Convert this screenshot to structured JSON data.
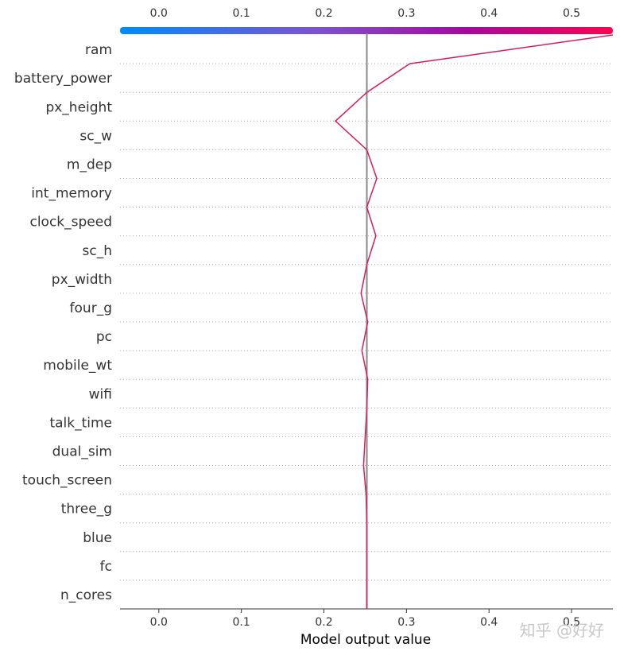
{
  "chart_data": {
    "type": "line",
    "subtype": "shap-decision-plot",
    "xlabel": "Model output value",
    "xlim": [
      -0.047,
      0.55
    ],
    "x_ticks": [
      0.0,
      0.1,
      0.2,
      0.3,
      0.4,
      0.5
    ],
    "x_tick_labels": [
      "0.0",
      "0.1",
      "0.2",
      "0.3",
      "0.4",
      "0.5"
    ],
    "base_value": 0.252,
    "features": [
      "ram",
      "battery_power",
      "px_height",
      "sc_w",
      "m_dep",
      "int_memory",
      "clock_speed",
      "sc_h",
      "px_width",
      "four_g",
      "pc",
      "mobile_wt",
      "wifi",
      "talk_time",
      "dual_sim",
      "touch_screen",
      "three_g",
      "blue",
      "fc",
      "n_cores"
    ],
    "path_values": [
      0.55,
      0.304,
      0.252,
      0.214,
      0.252,
      0.264,
      0.252,
      0.263,
      0.252,
      0.245,
      0.253,
      0.246,
      0.253,
      0.252,
      0.25,
      0.248,
      0.251,
      0.252,
      0.252,
      0.252,
      0.252
    ],
    "colormap": [
      "#008bfb",
      "#7d52d1",
      "#a40a9d",
      "#ff0052"
    ],
    "line_color": "#d81b60",
    "base_line_color": "#888888",
    "grid": "dotted-horizontal",
    "legend": "none"
  },
  "watermark": "知乎 @好好"
}
